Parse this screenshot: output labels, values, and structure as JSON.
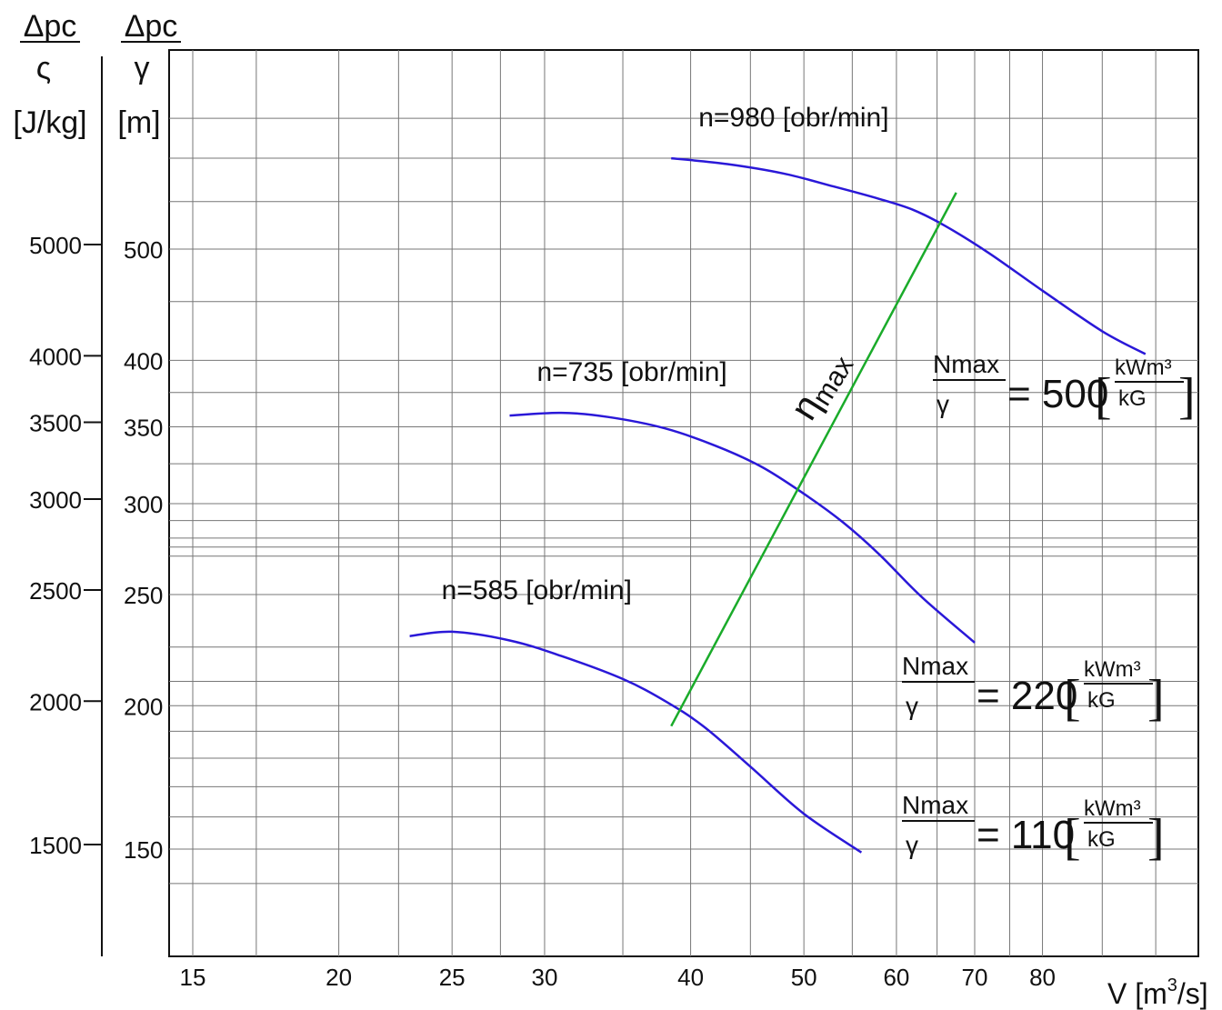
{
  "colors": {
    "curve": "#2a18d8",
    "eta_line": "#1aab2a",
    "grid": "#777777",
    "axis": "#111111"
  },
  "chart_data": {
    "type": "line",
    "x_scale": "log",
    "y_scale": "log",
    "grid": true,
    "xlim": [
      14,
      105
    ],
    "ylim_m": [
      130,
      640
    ],
    "x_ticks": [
      "15",
      "20",
      "25",
      "30",
      "40",
      "50",
      "60",
      "70",
      "80"
    ],
    "x_unit": {
      "prefix": "V [m",
      "sup": "3",
      "suffix": "/s]"
    },
    "left_axis": {
      "numerator": "Δpc",
      "denominator": "ς",
      "unit": "[J/kg]",
      "ticks": [
        "5000",
        "4000",
        "3500",
        "3000",
        "2500",
        "2000",
        "1500"
      ]
    },
    "right_axis": {
      "numerator": "Δpc",
      "denominator": "γ",
      "unit": "[m]",
      "ticks": [
        "500",
        "400",
        "350",
        "300",
        "250",
        "200",
        "150"
      ]
    },
    "series": [
      {
        "name": "n=980 [obr/min]",
        "x": [
          38.5,
          43,
          48,
          53,
          58,
          62,
          66,
          72,
          80,
          90,
          98
        ],
        "y": [
          600,
          593,
          582,
          567,
          553,
          541,
          524,
          496,
          460,
          424,
          405
        ]
      },
      {
        "name": "n=735 [obr/min]",
        "x": [
          28,
          31,
          34,
          38,
          42,
          46,
          50,
          54,
          58,
          63,
          70
        ],
        "y": [
          358,
          360,
          357,
          349,
          337,
          323,
          306,
          289,
          271,
          249,
          227
        ]
      },
      {
        "name": "n=585 [obr/min]",
        "x": [
          23,
          25,
          28,
          31,
          35,
          38,
          41,
          45,
          50,
          56
        ],
        "y": [
          230,
          232,
          228,
          221,
          211,
          202,
          192,
          177,
          161,
          149
        ]
      }
    ],
    "eta_line": {
      "label_main": "η",
      "label_sub": "max",
      "x": [
        38.5,
        67.5
      ],
      "y": [
        192,
        560
      ]
    },
    "annotations": [
      {
        "numerator": "Nmax",
        "denominator": "γ",
        "value": "500",
        "unit_num": "kWm³",
        "unit_den": "kG"
      },
      {
        "numerator": "Nmax",
        "denominator": "γ",
        "value": "220",
        "unit_num": "kWm³",
        "unit_den": "kG"
      },
      {
        "numerator": "Nmax",
        "denominator": "γ",
        "value": "110",
        "unit_num": "kWm³",
        "unit_den": "kG"
      }
    ]
  }
}
